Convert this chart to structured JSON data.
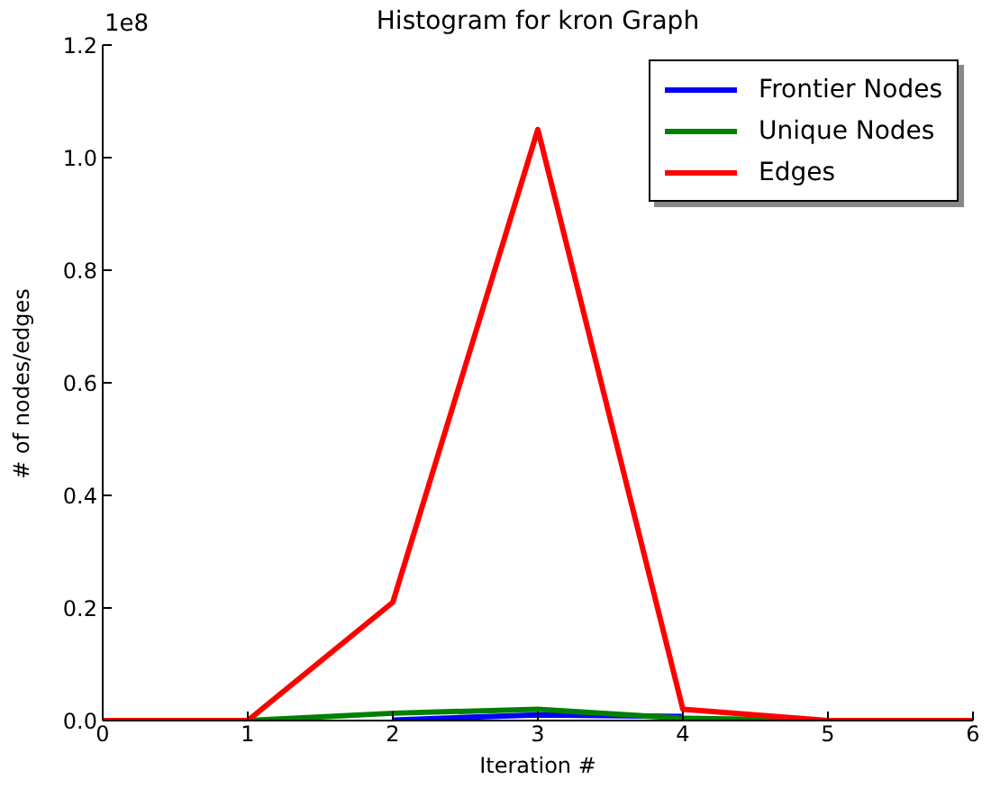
{
  "chart_data": {
    "type": "line",
    "title": "Histogram for kron Graph",
    "xlabel": "Iteration #",
    "ylabel": "# of nodes/edges",
    "annotations": [
      "1e8"
    ],
    "x": [
      0,
      1,
      2,
      3,
      4,
      5,
      6
    ],
    "series": [
      {
        "name": "Frontier Nodes",
        "color": "#0000ff",
        "values": [
          null,
          null,
          0.001,
          0.01,
          0.007,
          null,
          null
        ]
      },
      {
        "name": "Unique Nodes",
        "color": "#008000",
        "values": [
          0,
          0,
          0.013,
          0.02,
          0.004,
          0,
          0
        ]
      },
      {
        "name": "Edges",
        "color": "#ff0000",
        "values": [
          0,
          0,
          0.21,
          1.05,
          0.02,
          0,
          0
        ]
      }
    ],
    "xlim": [
      0,
      6
    ],
    "xticks": [
      0,
      1,
      2,
      3,
      4,
      5,
      6
    ],
    "ylim": [
      0,
      1.2
    ],
    "yticks": [
      {
        "value": 0,
        "label": "0.0"
      },
      0.2,
      0.4,
      0.6,
      0.8,
      {
        "value": 1,
        "label": "1.0"
      },
      1.2
    ],
    "grid": false,
    "legend": "top right",
    "marker": "none",
    "line_style": "solid"
  }
}
